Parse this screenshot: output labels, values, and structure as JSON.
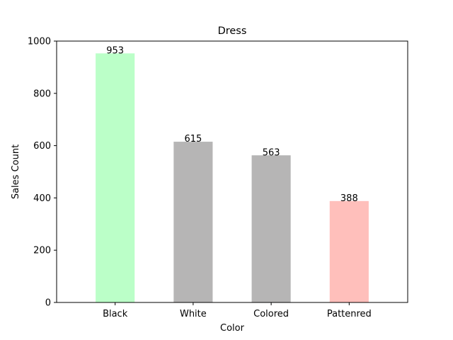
{
  "chart_data": {
    "type": "bar",
    "title": "Dress",
    "xlabel": "Color",
    "ylabel": "Sales Count",
    "categories": [
      "Black",
      "White",
      "Colored",
      "Pattenred"
    ],
    "values": [
      953,
      615,
      563,
      388
    ],
    "bar_colors": [
      "#bbffc8",
      "#b6b5b5",
      "#b6b5b5",
      "#ffbfbb"
    ],
    "ylim": [
      0,
      1000
    ],
    "yticks": [
      0,
      200,
      400,
      600,
      800,
      1000
    ],
    "grid": false,
    "legend": "none"
  }
}
